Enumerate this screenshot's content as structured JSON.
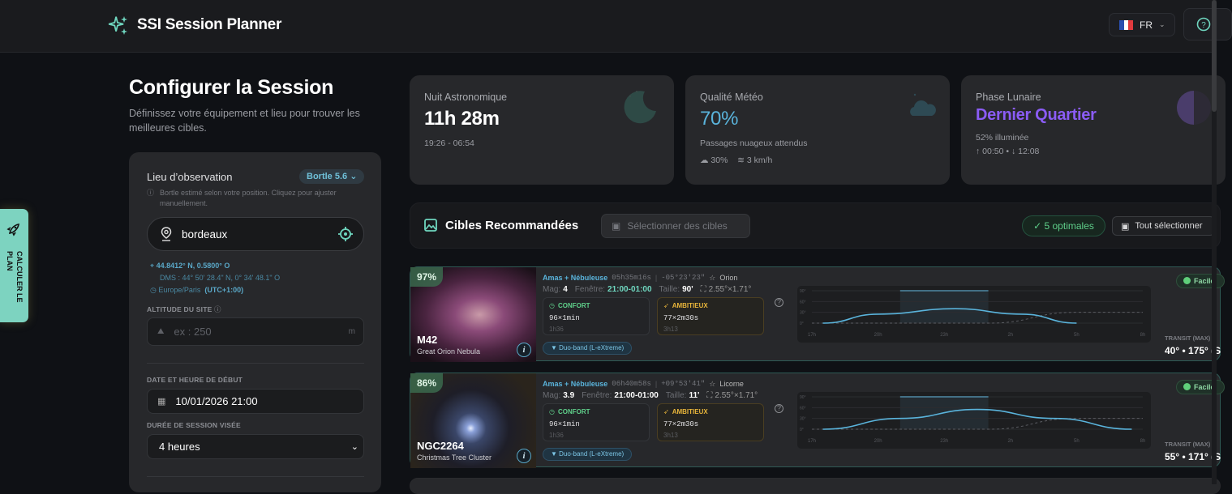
{
  "app": {
    "title": "SSI Session Planner",
    "language": "FR"
  },
  "side_action": {
    "label": "CALCULER LE PLAN"
  },
  "config": {
    "title": "Configurer la Session",
    "subtitle": "Définissez votre équipement et lieu pour trouver les meilleures cibles.",
    "location_label": "Lieu d’observation",
    "bortle": "Bortle 5.6",
    "bortle_note": "Bortle estimé selon votre position. Cliquez pour ajuster manuellement.",
    "location_value": "bordeaux",
    "coords": "44.8412° N, 0.5800° O",
    "dms": "DMS : 44° 50' 28.4\" N, 0° 34' 48.1\" O",
    "timezone": "Europe/Paris",
    "utc": "(UTC+1:00)",
    "altitude_label": "ALTITUDE DU SITE",
    "altitude_placeholder": "ex : 250",
    "altitude_unit": "m",
    "datetime_label": "DATE ET HEURE DE DÉBUT",
    "datetime_value": "10/01/2026 21:00",
    "duration_label": "DURÉE DE SESSION VISÉE",
    "duration_value": "4 heures"
  },
  "stats": {
    "night": {
      "label": "Nuit Astronomique",
      "value": "11h 28m",
      "range": "19:26 - 06:54"
    },
    "weather": {
      "label": "Qualité Météo",
      "value": "70%",
      "desc": "Passages nuageux attendus",
      "clouds": "30%",
      "wind": "3 km/h",
      "color": "#5ab4dc"
    },
    "moon": {
      "label": "Phase Lunaire",
      "value": "Dernier Quartier",
      "illum": "52% illuminée",
      "times": "↑ 00:50 • ↓ 12:08",
      "color": "#8b5cf6"
    }
  },
  "targets_header": {
    "title": "Cibles Recommandées",
    "select_btn": "Sélectionner des cibles",
    "optimal": "✓ 5 optimales",
    "select_all": "Tout sélectionner"
  },
  "targets": [
    {
      "score": "97%",
      "id": "M42",
      "name": "Great Orion Nebula",
      "type": "Amas + Nébuleuse",
      "ra": "05h35m16s",
      "dec": "-05°23'23\"",
      "constellation": "Orion",
      "mag_label": "Mag:",
      "mag": "4",
      "window_label": "Fenêtre:",
      "window": "21:00-01:00",
      "size_label": "Taille:",
      "size": "90'",
      "fov": "2.55°×1.71°",
      "comfort": {
        "label": "CONFORT",
        "plan": "96×1min",
        "dur": "1h36"
      },
      "ambitious": {
        "label": "AMBITIEUX",
        "plan": "77×2m30s",
        "dur": "3h13"
      },
      "filter": "Duo-band (L-eXtreme)",
      "difficulty": "Facile",
      "transit_label": "TRANSIT (MAX)",
      "transit": "40° • 175° (S",
      "chart_data": {
        "type": "line",
        "x_ticks": [
          "17h",
          "20h",
          "23h",
          "2h",
          "5h",
          "8h"
        ],
        "y_ticks": [
          "90°",
          "60°",
          "30°",
          "0°"
        ],
        "ylim": [
          0,
          90
        ],
        "target_altitude": {
          "hours": [
            17.5,
            20,
            23.5,
            2.5,
            5
          ],
          "deg": [
            0,
            25,
            40,
            25,
            0
          ]
        },
        "moon_altitude": {
          "hours": [
            17,
            1,
            5,
            8
          ],
          "deg": [
            0,
            0,
            30,
            30
          ]
        },
        "window": [
          "21:00",
          "01:00"
        ]
      }
    },
    {
      "score": "86%",
      "id": "NGC2264",
      "name": "Christmas Tree Cluster",
      "type": "Amas + Nébuleuse",
      "ra": "06h40m58s",
      "dec": "+09°53'41\"",
      "constellation": "Licorne",
      "mag_label": "Mag:",
      "mag": "3.9",
      "window_label": "Fenêtre:",
      "window": "21:00-01:00",
      "size_label": "Taille:",
      "size": "11'",
      "fov": "2.55°×1.71°",
      "comfort": {
        "label": "CONFORT",
        "plan": "96×1min",
        "dur": "1h36"
      },
      "ambitious": {
        "label": "AMBITIEUX",
        "plan": "77×2m30s",
        "dur": "3h13"
      },
      "filter": "Duo-band (L-eXtreme)",
      "difficulty": "Facile",
      "transit_label": "TRANSIT (MAX)",
      "transit": "55° • 171° (S",
      "chart_data": {
        "type": "line",
        "x_ticks": [
          "17h",
          "20h",
          "23h",
          "2h",
          "5h",
          "8h"
        ],
        "y_ticks": [
          "90°",
          "60°",
          "30°",
          "0°"
        ],
        "ylim": [
          0,
          90
        ],
        "target_altitude": {
          "hours": [
            17.5,
            21,
            0.5,
            4,
            7.5
          ],
          "deg": [
            0,
            30,
            55,
            30,
            0
          ]
        },
        "moon_altitude": {
          "hours": [
            17,
            1,
            5,
            8
          ],
          "deg": [
            0,
            0,
            30,
            30
          ]
        },
        "window": [
          "21:00",
          "01:00"
        ]
      }
    }
  ]
}
